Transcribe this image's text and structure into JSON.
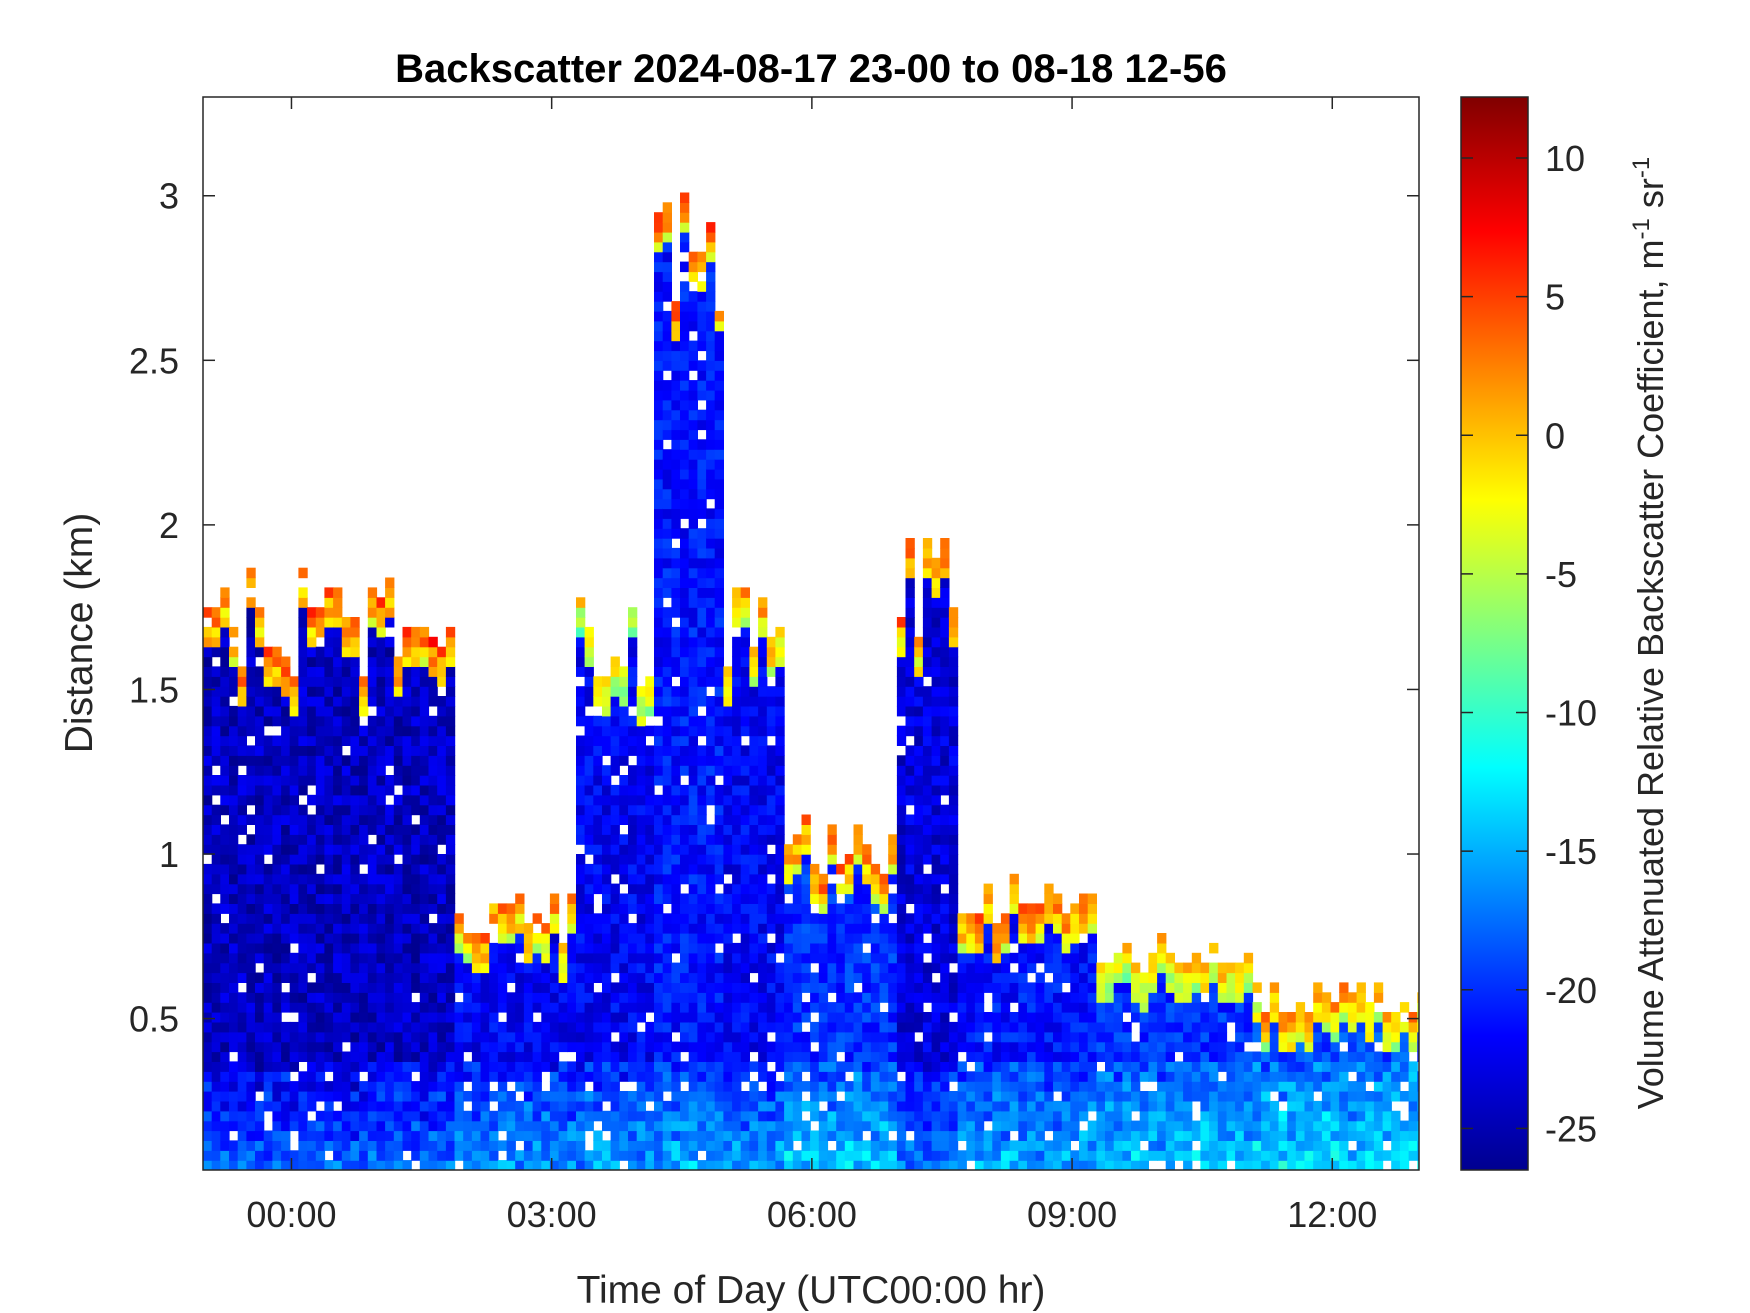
{
  "chart_data": {
    "type": "heatmap",
    "title": "Backscatter 2024-08-17 23-00 to 08-18 12-56",
    "xlabel": "Time of Day (UTC00:00 hr)",
    "ylabel": "Distance (km)",
    "x_units": "hours relative to 2024-08-18 00:00 UTC",
    "xlim": [
      -1.02,
      13.0
    ],
    "ylim": [
      0.04,
      3.3
    ],
    "x_ticks": [
      0,
      3,
      6,
      9,
      12
    ],
    "x_tick_labels": [
      "00:00",
      "03:00",
      "06:00",
      "09:00",
      "12:00"
    ],
    "y_ticks": [
      0.5,
      1,
      1.5,
      2,
      2.5,
      3
    ],
    "y_tick_labels": [
      "0.5",
      "1",
      "1.5",
      "2",
      "2.5",
      "3"
    ],
    "colorbar": {
      "label": "Volume Attenuated Relative Backscatter Coefficient, m",
      "label_unit_parts": [
        "-1",
        " sr",
        "-1"
      ],
      "range": [
        -26.5,
        12.2
      ],
      "ticks": [
        -25,
        -20,
        -15,
        -10,
        -5,
        0,
        5,
        10
      ],
      "tick_labels": [
        "-25",
        "-20",
        "-15",
        "-10",
        "-5",
        "0",
        "5",
        "10"
      ],
      "colormap": "jet"
    },
    "approx_profile": {
      "description_of_columns": "approximate cloud/aerosol top height (km) and top backscatter value per time segment",
      "segments": [
        {
          "t_start": -1.02,
          "t_end": 1.8,
          "top_km": 1.68,
          "top_value": 5,
          "fill_value": -24
        },
        {
          "t_start": 1.8,
          "t_end": 3.2,
          "top_km": 0.8,
          "top_value": 3,
          "fill_value": -22
        },
        {
          "t_start": 3.2,
          "t_end": 4.1,
          "top_km": 1.65,
          "top_value": 0,
          "fill_value": -22
        },
        {
          "t_start": 4.1,
          "t_end": 4.9,
          "top_km": 2.9,
          "top_value": 5,
          "fill_value": -21
        },
        {
          "t_start": 4.9,
          "t_end": 5.6,
          "top_km": 1.7,
          "top_value": 2,
          "fill_value": -22
        },
        {
          "t_start": 5.6,
          "t_end": 6.9,
          "top_km": 1.0,
          "top_value": 4,
          "fill_value": -20
        },
        {
          "t_start": 6.9,
          "t_end": 7.6,
          "top_km": 1.82,
          "top_value": 4,
          "fill_value": -23
        },
        {
          "t_start": 7.6,
          "t_end": 9.2,
          "top_km": 0.85,
          "top_value": 4,
          "fill_value": -21
        },
        {
          "t_start": 9.2,
          "t_end": 11.0,
          "top_km": 0.7,
          "top_value": 1,
          "fill_value": -20
        },
        {
          "t_start": 11.0,
          "t_end": 13.0,
          "top_km": 0.55,
          "top_value": 2,
          "fill_value": -19
        }
      ]
    }
  },
  "colors": {
    "background": "#ffffff",
    "axis": "#262626"
  }
}
